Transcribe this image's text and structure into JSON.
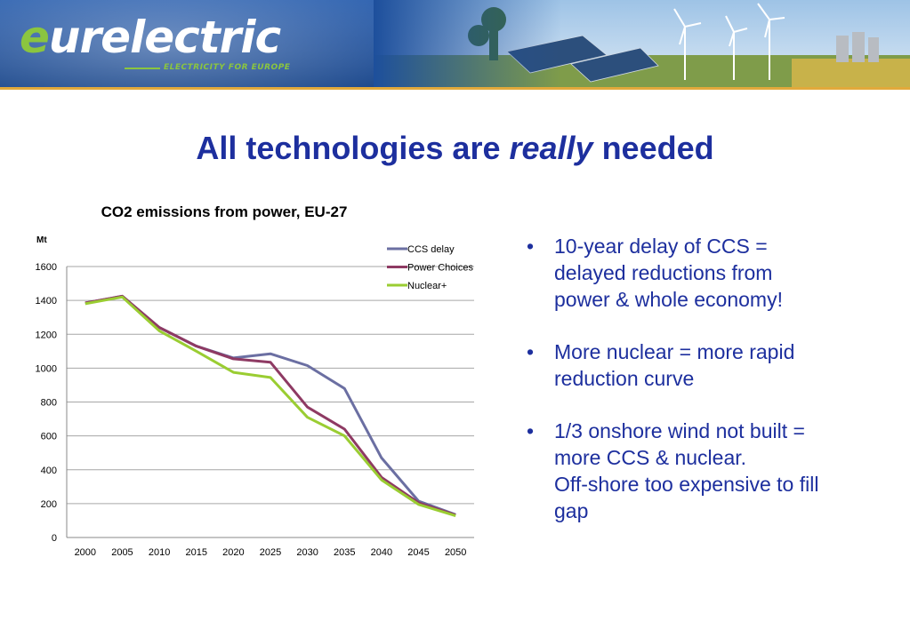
{
  "header": {
    "logo_e": "e",
    "logo_rest": "urelectric",
    "tagline": "ELECTRICITY FOR EUROPE"
  },
  "slide": {
    "title_pre": "All technologies are ",
    "title_em": "really",
    "title_post": " needed"
  },
  "chart_data": {
    "type": "line",
    "title": "CO2 emissions from power, EU-27",
    "ylabel": "Mt",
    "ylim": [
      0,
      1600
    ],
    "yticks": [
      0,
      200,
      400,
      600,
      800,
      1000,
      1200,
      1400,
      1600
    ],
    "x": [
      2000,
      2005,
      2010,
      2015,
      2020,
      2025,
      2030,
      2035,
      2040,
      2045,
      2050
    ],
    "grid": true,
    "legend_position": "top-right",
    "series": [
      {
        "name": "CCS delay",
        "color": "#6b6fa2",
        "values": [
          1385,
          1425,
          1240,
          1130,
          1060,
          1085,
          1015,
          880,
          470,
          215,
          135
        ]
      },
      {
        "name": "Power Choices",
        "color": "#8e3a63",
        "values": [
          1385,
          1425,
          1240,
          1130,
          1055,
          1035,
          770,
          640,
          355,
          205,
          132
        ]
      },
      {
        "name": "Nuclear+",
        "color": "#9acd32",
        "values": [
          1380,
          1420,
          1220,
          1100,
          975,
          945,
          710,
          600,
          340,
          195,
          128
        ]
      }
    ]
  },
  "bullets": [
    {
      "mark": "•",
      "lines": [
        "10-year delay of CCS =",
        "delayed reductions from",
        "power & whole economy!"
      ]
    },
    {
      "mark": "•",
      "lines": [
        "More nuclear = more rapid",
        "reduction curve"
      ]
    },
    {
      "mark": "•",
      "lines": [
        "1/3 onshore wind not built =",
        "more CCS & nuclear.",
        "Off-shore too expensive to fill",
        "gap"
      ]
    }
  ]
}
